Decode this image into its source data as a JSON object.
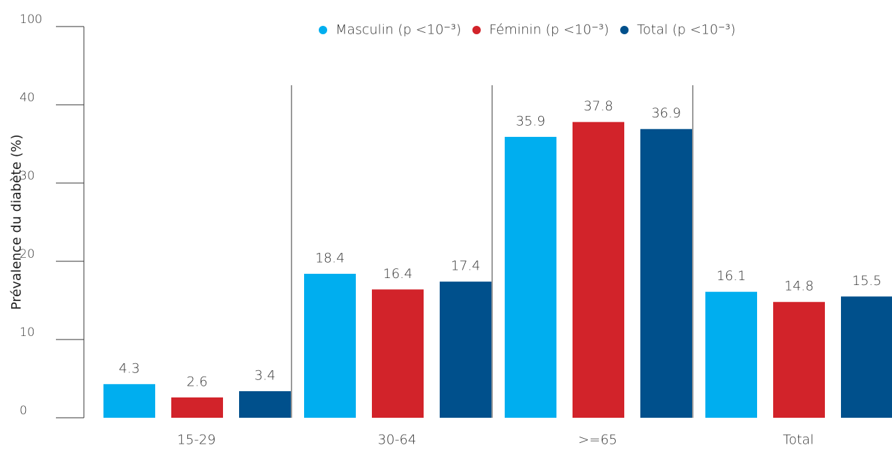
{
  "chart_data": {
    "type": "bar",
    "ylabel": "Prévalence du diabète (%)",
    "categories": [
      "15-29",
      "30-64",
      ">=65",
      "Total"
    ],
    "series": [
      {
        "name": "Masculin (p <10⁻³)",
        "color": "#00aeef",
        "values": [
          4.3,
          18.4,
          35.9,
          16.1
        ]
      },
      {
        "name": "Féminin (p <10⁻³)",
        "color": "#d2232a",
        "values": [
          2.6,
          16.4,
          37.8,
          14.8
        ]
      },
      {
        "name": "Total (p <10⁻³)",
        "color": "#00508c",
        "values": [
          3.4,
          17.4,
          36.9,
          15.5
        ]
      }
    ],
    "ylim": [
      0,
      100
    ],
    "yticks": [
      0,
      10,
      20,
      30,
      40,
      100
    ]
  }
}
